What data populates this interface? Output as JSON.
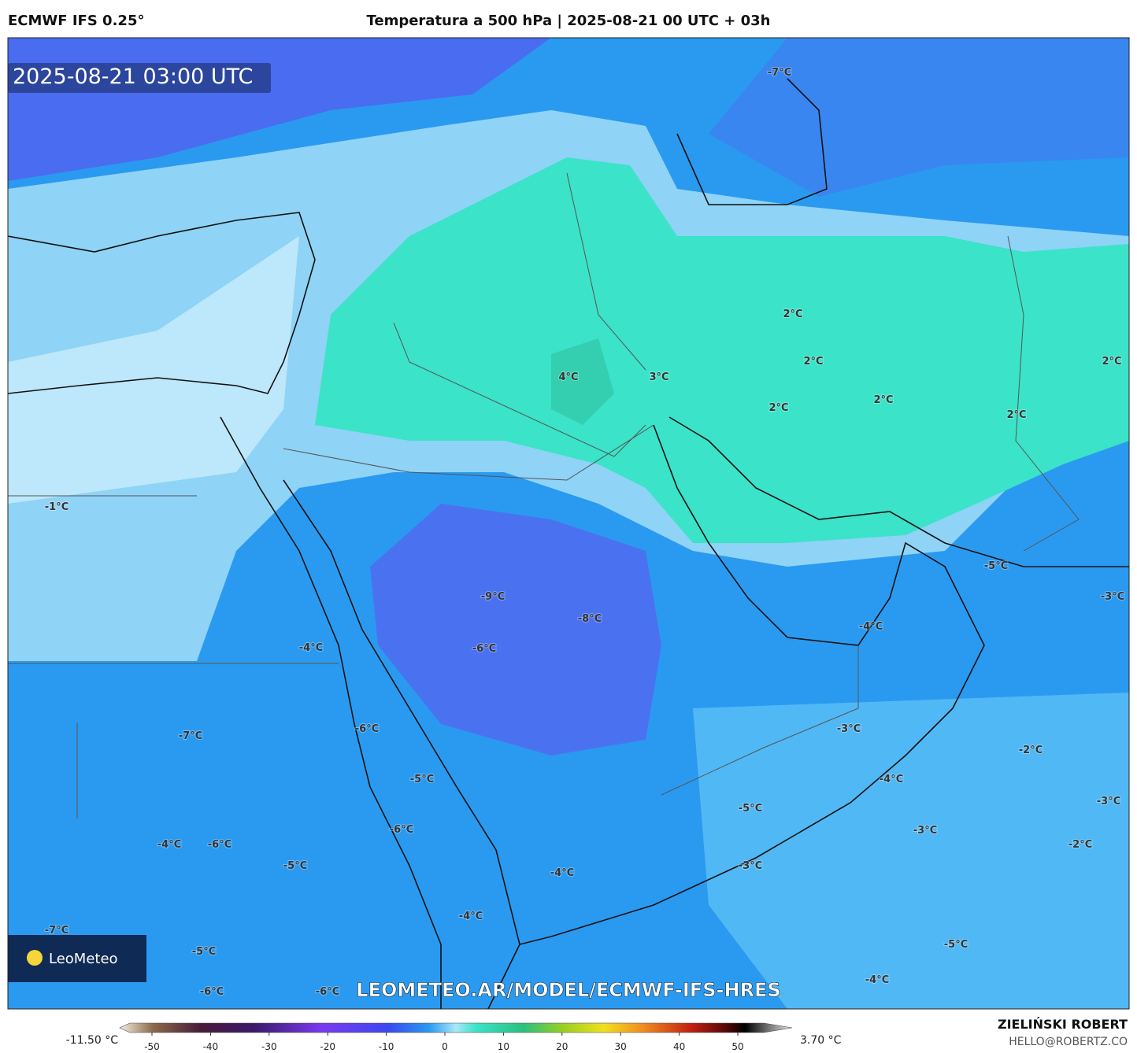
{
  "header": {
    "model": "ECMWF IFS 0.25°",
    "title": "Temperatura a 500 hPa | 2025-08-21 00 UTC + 03h"
  },
  "map": {
    "timestamp": "2025-08-21 03:00 UTC",
    "labels": [
      "-7°C",
      "2°C",
      "2°C",
      "2°C",
      "4°C",
      "3°C",
      "2°C",
      "2°C",
      "2°C",
      "-1°C",
      "-5°C",
      "-3°C",
      "-9°C",
      "-8°C",
      "-4°C",
      "-4°C",
      "-6°C",
      "-3°C",
      "-6°C",
      "-7°C",
      "-2°C",
      "-5°C",
      "-4°C",
      "-3°C",
      "-5°C",
      "-6°C",
      "-3°C",
      "-4°C",
      "-6°C",
      "-2°C",
      "-5°C",
      "-3°C",
      "-4°C",
      "-4°C",
      "-7°C",
      "-5°C",
      "-5°C",
      "-4°C",
      "-6°C",
      "-6°C"
    ],
    "logo": "LeoMeteo",
    "url": "LEOMETEO.AR/MODEL/ECMWF-IFS-HRES"
  },
  "colorbar": {
    "min_label": "-11.50 °C",
    "max_label": "3.70 °C",
    "ticks": [
      -50,
      -40,
      -30,
      -20,
      -10,
      0,
      10,
      20,
      30,
      40,
      50
    ]
  },
  "footer": {
    "author": "ZIELIŃSKI ROBERT",
    "contact": "HELLO@ROBERTZ.CO"
  }
}
